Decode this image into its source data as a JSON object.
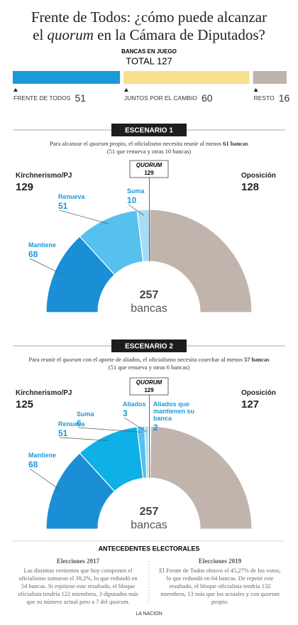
{
  "header": {
    "title": [
      "Frente de Todos: ¿cómo puede alcanzar",
      "el ",
      "quorum",
      " en la Cámara de Diputados?"
    ]
  },
  "chart_data": [
    {
      "type": "bar",
      "orientation": "horizontal",
      "stacked": true,
      "title": "BANCAS EN JUEGO",
      "subtitle": "TOTAL 127",
      "series": [
        {
          "name": "FRENTE DE TODOS",
          "color": "#1a9ad9",
          "values": [
            51
          ]
        },
        {
          "name": "JUNTOS POR EL CAMBIO",
          "color": "#f8e08f",
          "values": [
            60
          ]
        },
        {
          "name": "RESTO",
          "color": "#bfb4ad",
          "values": [
            16
          ]
        }
      ]
    },
    {
      "type": "half-donut",
      "total": 257,
      "total_label": "bancas",
      "quorum": {
        "label": "QUORUM",
        "value": 129
      },
      "group": {
        "name": "Kirchnerismo/PJ",
        "value": 129
      },
      "categories": [
        "Mantiene",
        "Renueva",
        "Suma",
        "Oposición"
      ],
      "values": [
        68,
        51,
        10,
        128
      ],
      "colors": [
        "#1a8fd6",
        "#55c1ec",
        "#a8dcf2",
        "#c0b4ac"
      ]
    },
    {
      "type": "half-donut",
      "total": 257,
      "total_label": "bancas",
      "quorum": {
        "label": "QUORUM",
        "value": 129
      },
      "group": {
        "name": "Kirchnerismo/PJ",
        "value": 125
      },
      "categories": [
        "Mantiene",
        "Renueva",
        "Suma",
        "Aliados",
        "Aliados que mantienen su banca",
        "Oposición"
      ],
      "values": [
        68,
        51,
        6,
        3,
        2,
        127
      ],
      "colors": [
        "#1a8fd6",
        "#0eb0e8",
        "#55c1ec",
        "#a8dcf2",
        "#c9e9f6",
        "#c0b4ac"
      ]
    }
  ],
  "scenarios": [
    {
      "label": "ESCENARIO 1",
      "text": [
        "Para alcanzar el ",
        "quorum",
        " propio, el oficialismo necesita reunir al menos ",
        "61 bancas"
      ],
      "note": "(51 que renueva y otras 10 bancas)"
    },
    {
      "label": "ESCENARIO 2",
      "text": [
        "Para reunir el ",
        "quorum",
        " con el aporte de aliados, el oficialismo necesita cosechar al menos ",
        "57 bancas"
      ],
      "note": "(51 que renueva y otras 6 bancas)"
    }
  ],
  "antecedentes": {
    "title": "ANTECEDENTES ELECTORALES",
    "columns": [
      {
        "title": "Elecciones 2017",
        "text": [
          "Las distintas vertientes que hoy componen el oficialismo sumaron el 39,2%, lo que redundó en 54 bancas. Si repitiese este resultado, el bloque oficialista tendría 122 miembros, 3 diputados más que su número actual pero a 7 del ",
          "quorum",
          "."
        ]
      },
      {
        "title": "Elecciones 2019",
        "text": [
          "El Frente de Todos obtuvo el 45,27% de los votos, lo que redundó en 64 bancas. De repetir este resultado, el bloque oficialista tendría 132 miembros, 13 más que los actuales y con ",
          "quorum",
          " propio."
        ]
      }
    ]
  },
  "footer": "LA NACION"
}
